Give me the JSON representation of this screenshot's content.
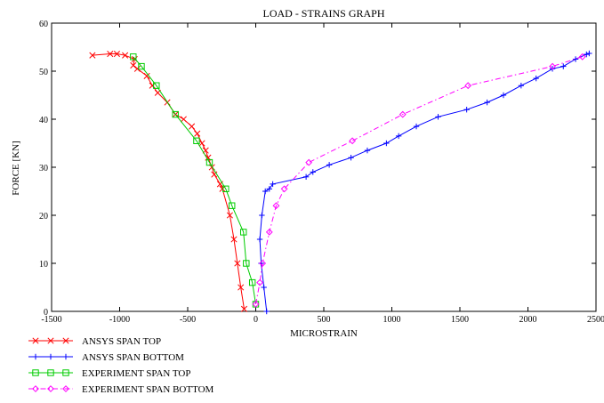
{
  "chart_data": {
    "type": "line",
    "title": "LOAD - STRAINS GRAPH",
    "xlabel": "MICROSTRAIN",
    "ylabel": "FORCE [KN]",
    "xlim": [
      -1500,
      2500
    ],
    "ylim": [
      0,
      60
    ],
    "xticks": [
      "-1500",
      "-1000",
      "-500",
      "0",
      "500",
      "1000",
      "1500",
      "2000",
      "2500"
    ],
    "yticks": [
      "0",
      "10",
      "20",
      "30",
      "40",
      "50",
      "60"
    ],
    "grid": false,
    "legend_position": "bottom-left",
    "series": [
      {
        "name": "ANSYS SPAN TOP",
        "color": "#ff0000",
        "marker": "x",
        "dash": "solid",
        "points": [
          [
            -85,
            0.5
          ],
          [
            -110,
            5
          ],
          [
            -135,
            10
          ],
          [
            -160,
            15
          ],
          [
            -190,
            20
          ],
          [
            -245,
            25.5
          ],
          [
            -262,
            26.5
          ],
          [
            -305,
            28.5
          ],
          [
            -322,
            30
          ],
          [
            -350,
            32
          ],
          [
            -368,
            33.5
          ],
          [
            -395,
            35
          ],
          [
            -430,
            37
          ],
          [
            -470,
            38.5
          ],
          [
            -530,
            40
          ],
          [
            -590,
            41
          ],
          [
            -650,
            43.5
          ],
          [
            -720,
            45.5
          ],
          [
            -760,
            47
          ],
          [
            -800,
            49
          ],
          [
            -870,
            50.5
          ],
          [
            -900,
            51.2
          ],
          [
            -890,
            52.5
          ],
          [
            -960,
            53.3
          ],
          [
            -1020,
            53.6
          ],
          [
            -1070,
            53.6
          ],
          [
            -1200,
            53.3
          ]
        ]
      },
      {
        "name": "ANSYS SPAN BOTTOM",
        "color": "#0000ff",
        "marker": "+",
        "dash": "solid",
        "points": [
          [
            80,
            0
          ],
          [
            60,
            5
          ],
          [
            40,
            10
          ],
          [
            30,
            15
          ],
          [
            45,
            20
          ],
          [
            70,
            25
          ],
          [
            100,
            25.5
          ],
          [
            125,
            26.5
          ],
          [
            370,
            28
          ],
          [
            420,
            29
          ],
          [
            540,
            30.5
          ],
          [
            700,
            32
          ],
          [
            820,
            33.5
          ],
          [
            960,
            35
          ],
          [
            1050,
            36.5
          ],
          [
            1180,
            38.5
          ],
          [
            1340,
            40.5
          ],
          [
            1550,
            42
          ],
          [
            1700,
            43.5
          ],
          [
            1820,
            45
          ],
          [
            1950,
            47
          ],
          [
            2060,
            48.5
          ],
          [
            2180,
            50.5
          ],
          [
            2260,
            51
          ],
          [
            2350,
            52.5
          ],
          [
            2430,
            53.5
          ],
          [
            2450,
            53.7
          ]
        ]
      },
      {
        "name": "EXPERIMENT SPAN TOP",
        "color": "#00cc00",
        "marker": "square",
        "dash": "solid",
        "points": [
          [
            0,
            1.5
          ],
          [
            -25,
            6
          ],
          [
            -70,
            10
          ],
          [
            -90,
            16.5
          ],
          [
            -175,
            22
          ],
          [
            -220,
            25.5
          ],
          [
            -340,
            31
          ],
          [
            -435,
            35.5
          ],
          [
            -590,
            41
          ],
          [
            -730,
            47
          ],
          [
            -840,
            51
          ],
          [
            -900,
            53
          ]
        ]
      },
      {
        "name": "EXPERIMENT SPAN BOTTOM",
        "color": "#ff00ff",
        "marker": "diamond",
        "dash": "dashdot",
        "points": [
          [
            0,
            1.5
          ],
          [
            30,
            6
          ],
          [
            50,
            10
          ],
          [
            100,
            16.5
          ],
          [
            150,
            22
          ],
          [
            210,
            25.5
          ],
          [
            390,
            31
          ],
          [
            710,
            35.5
          ],
          [
            1080,
            41
          ],
          [
            1560,
            47
          ],
          [
            2180,
            51
          ],
          [
            2400,
            53
          ]
        ]
      }
    ]
  }
}
